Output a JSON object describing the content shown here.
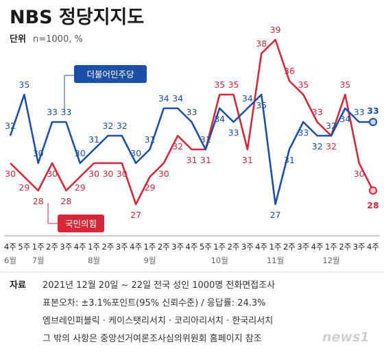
{
  "header": {
    "title": "NBS 정당지지도",
    "unit_label": "단위",
    "unit_value": "n=1000, %"
  },
  "chart_data": {
    "type": "line",
    "title": "NBS 정당지지도",
    "categories": [
      "4주",
      "5주",
      "1주",
      "2주",
      "3주",
      "4주",
      "1주",
      "2주",
      "3주",
      "4주",
      "1주",
      "2주",
      "3주",
      "4주",
      "5주",
      "1주",
      "2주",
      "3주",
      "4주",
      "1주",
      "2주",
      "3주",
      "4주",
      "1주",
      "2주",
      "3주",
      "4주"
    ],
    "month_labels": [
      {
        "label": "6월",
        "index": 0
      },
      {
        "label": "7월",
        "index": 2
      },
      {
        "label": "8월",
        "index": 6
      },
      {
        "label": "9월",
        "index": 10
      },
      {
        "label": "10월",
        "index": 15
      },
      {
        "label": "11월",
        "index": 19
      },
      {
        "label": "12월",
        "index": 23
      }
    ],
    "series": [
      {
        "name": "더불어민주당",
        "color": "#1c4fa8",
        "values": [
          32,
          35,
          30,
          33,
          33,
          30,
          31,
          32,
          32,
          30,
          31,
          34,
          34,
          33,
          31,
          34,
          33,
          34,
          35,
          27,
          31,
          33,
          32,
          32,
          34,
          33,
          33
        ]
      },
      {
        "name": "국민의힘",
        "color": "#d62839",
        "values": [
          30,
          29,
          28,
          30,
          28,
          29,
          30,
          30,
          30,
          27,
          29,
          30,
          32,
          31,
          31,
          35,
          35,
          31,
          38,
          39,
          36,
          35,
          33,
          32,
          35,
          30,
          28
        ]
      }
    ],
    "ylim": [
      26,
      40
    ],
    "grid": false,
    "legend": "inline-labels"
  },
  "legend": {
    "dem_label": "더불어민주당",
    "ppp_label": "국민의힘"
  },
  "notes": {
    "head": "자료",
    "line1": "2021년 12월 20일 ~ 22일 전국 성인 1000명 전화면접조사",
    "line2": "표본오차: ±3.1%포인트(95% 신뢰수준) / 응답률: 24.3%",
    "line3": "엠브레인퍼블릭 · 케이스탯리서치 · 코리아리서치 · 한국리서치",
    "line4": "그 밖의 사항은 중앙선거여론조사심의위원회 홈페이지 참조"
  },
  "logo": {
    "text": "news1"
  }
}
